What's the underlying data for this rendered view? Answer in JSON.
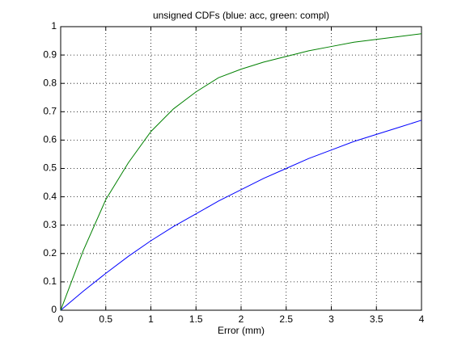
{
  "chart_data": {
    "type": "line",
    "title": "unsigned CDFs (blue: acc, green: compl)",
    "x_label": "Error (mm)",
    "x": [
      0,
      0.25,
      0.5,
      0.75,
      1,
      1.25,
      1.5,
      1.75,
      2,
      2.25,
      2.5,
      2.75,
      3,
      3.25,
      3.5,
      3.75,
      4
    ],
    "series": [
      {
        "color": "#0000ff",
        "values": [
          0,
          0.067,
          0.13,
          0.19,
          0.245,
          0.295,
          0.34,
          0.385,
          0.425,
          0.465,
          0.5,
          0.535,
          0.565,
          0.595,
          0.62,
          0.645,
          0.67
        ]
      },
      {
        "color": "#008000",
        "values": [
          0,
          0.21,
          0.39,
          0.52,
          0.63,
          0.71,
          0.77,
          0.82,
          0.85,
          0.875,
          0.895,
          0.915,
          0.93,
          0.945,
          0.955,
          0.965,
          0.975
        ]
      }
    ],
    "xlim": [
      0,
      4
    ],
    "xticks": [
      0,
      0.5,
      1,
      1.5,
      2,
      2.5,
      3,
      3.5,
      4
    ],
    "ylim": [
      0,
      1
    ],
    "yticks": [
      0,
      0.1,
      0.2,
      0.3,
      0.4,
      0.5,
      0.6,
      0.7,
      0.8,
      0.9,
      1
    ],
    "grid": true
  }
}
